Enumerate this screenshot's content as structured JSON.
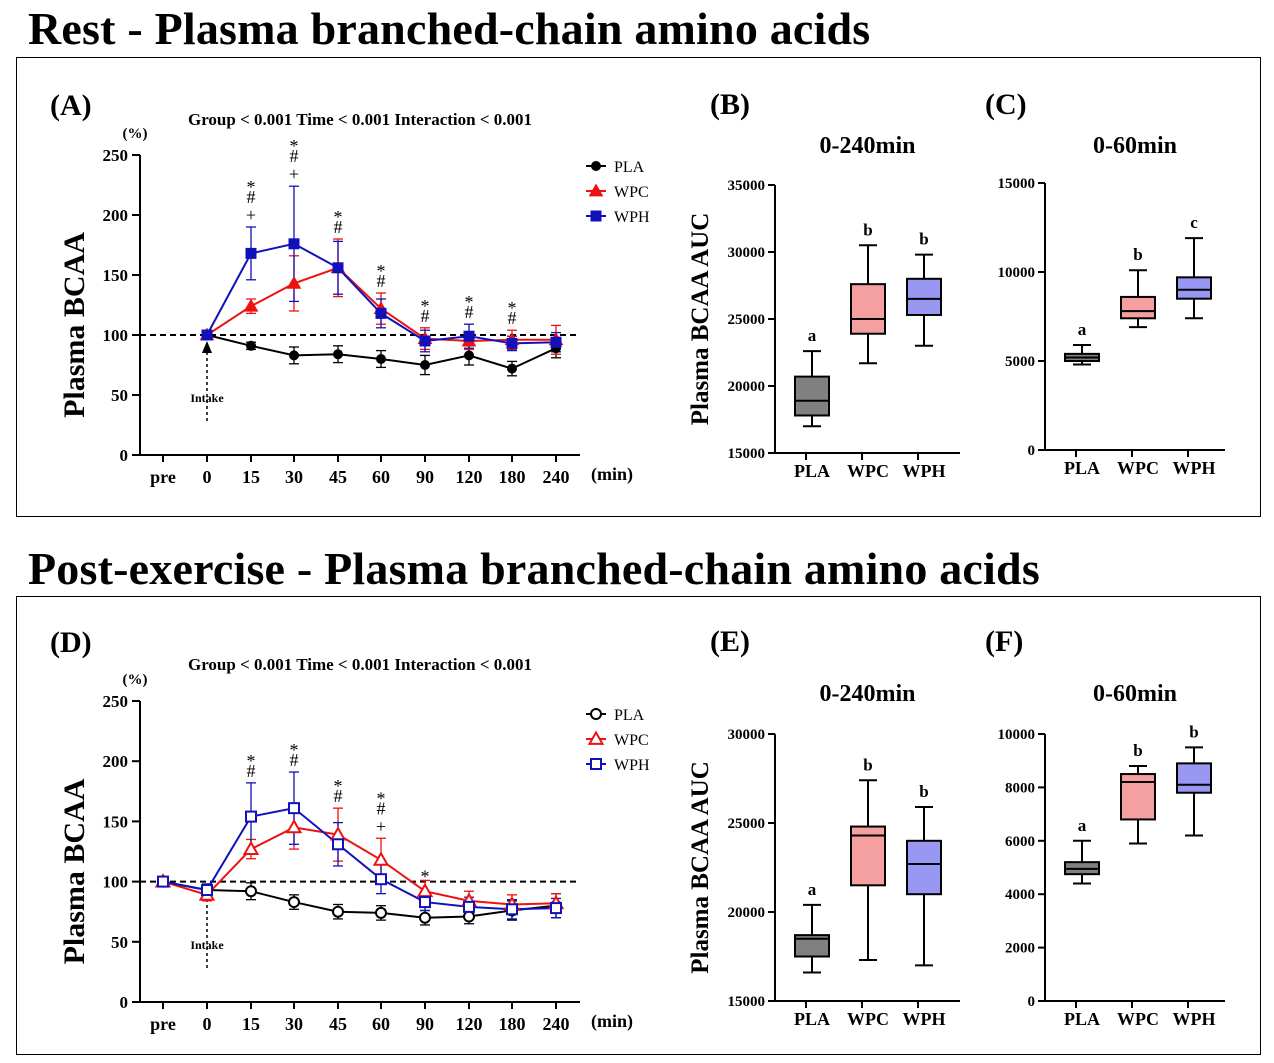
{
  "headings": {
    "rest": "Rest - Plasma branched-chain amino acids",
    "post": "Post-exercise - Plasma branched-chain amino acids"
  },
  "colors": {
    "PLA": "#000000",
    "WPC": "#ee1111",
    "WPH": "#1111bb",
    "box_PLA": "#808080",
    "box_WPC": "#f5a0a0",
    "box_WPH": "#9898f2"
  },
  "chart_data": [
    {
      "id": "A",
      "type": "line",
      "panel_label": "(A)",
      "stats": "Group < 0.001 Time < 0.001 Interaction < 0.001",
      "ylabel": "Plasma BCAA",
      "yunit": "(%)",
      "xunit": "(min)",
      "ylim": [
        0,
        250
      ],
      "yticks": [
        0,
        50,
        100,
        150,
        200,
        250
      ],
      "categories": [
        "pre",
        "0",
        "15",
        "30",
        "45",
        "60",
        "90",
        "120",
        "180",
        "240"
      ],
      "reference_line": 100,
      "annotation": "Intake",
      "annotation_at": "0",
      "legend_position": "top-right",
      "marker_fill": "filled",
      "series": [
        {
          "name": "PLA",
          "marker": "circle",
          "values": [
            null,
            100,
            91,
            83,
            84,
            80,
            75,
            83,
            72,
            89
          ],
          "errors": [
            null,
            0,
            3,
            7,
            7,
            7,
            8,
            8,
            6,
            8
          ]
        },
        {
          "name": "WPC",
          "marker": "triangle",
          "values": [
            null,
            100,
            124,
            143,
            156,
            122,
            97,
            95,
            96,
            96
          ],
          "errors": [
            null,
            0,
            6,
            23,
            24,
            13,
            9,
            7,
            8,
            12
          ]
        },
        {
          "name": "WPH",
          "marker": "square",
          "values": [
            null,
            100,
            168,
            176,
            156,
            118,
            95,
            99,
            93,
            94
          ],
          "errors": [
            null,
            0,
            22,
            48,
            22,
            12,
            9,
            10,
            6,
            8
          ]
        }
      ],
      "significance": [
        {
          "x": "15",
          "marks": [
            "*",
            "#",
            "+"
          ]
        },
        {
          "x": "30",
          "marks": [
            "*",
            "#",
            "+"
          ]
        },
        {
          "x": "45",
          "marks": [
            "*",
            "#"
          ]
        },
        {
          "x": "60",
          "marks": [
            "*",
            "#"
          ]
        },
        {
          "x": "90",
          "marks": [
            "*",
            "#"
          ]
        },
        {
          "x": "120",
          "marks": [
            "*",
            "#"
          ]
        },
        {
          "x": "180",
          "marks": [
            "*",
            "#"
          ]
        }
      ]
    },
    {
      "id": "B",
      "type": "box",
      "panel_label": "(B)",
      "title": "0-240min",
      "ylabel": "Plasma BCAA AUC",
      "ylim": [
        15000,
        35000
      ],
      "yticks": [
        15000,
        20000,
        25000,
        30000,
        35000
      ],
      "categories": [
        "PLA",
        "WPC",
        "WPH"
      ],
      "boxes": [
        {
          "min": 17000,
          "q1": 17800,
          "median": 18900,
          "q3": 20700,
          "max": 22600
        },
        {
          "min": 21700,
          "q1": 23900,
          "median": 25000,
          "q3": 27600,
          "max": 30500
        },
        {
          "min": 23000,
          "q1": 25300,
          "median": 26500,
          "q3": 28000,
          "max": 29800
        }
      ],
      "letters": [
        "a",
        "b",
        "b"
      ]
    },
    {
      "id": "C",
      "type": "box",
      "panel_label": "(C)",
      "title": "0-60min",
      "ylabel": "",
      "ylim": [
        0,
        15000
      ],
      "yticks": [
        0,
        5000,
        10000,
        15000
      ],
      "categories": [
        "PLA",
        "WPC",
        "WPH"
      ],
      "boxes": [
        {
          "min": 4800,
          "q1": 5000,
          "median": 5200,
          "q3": 5400,
          "max": 5900
        },
        {
          "min": 6900,
          "q1": 7400,
          "median": 7800,
          "q3": 8600,
          "max": 10100
        },
        {
          "min": 7400,
          "q1": 8500,
          "median": 9000,
          "q3": 9700,
          "max": 11900
        }
      ],
      "letters": [
        "a",
        "b",
        "c"
      ]
    },
    {
      "id": "D",
      "type": "line",
      "panel_label": "(D)",
      "stats": "Group < 0.001 Time < 0.001 Interaction < 0.001",
      "ylabel": "Plasma BCAA",
      "yunit": "(%)",
      "xunit": "(min)",
      "ylim": [
        0,
        250
      ],
      "yticks": [
        0,
        50,
        100,
        150,
        200,
        250
      ],
      "categories": [
        "pre",
        "0",
        "15",
        "30",
        "45",
        "60",
        "90",
        "120",
        "180",
        "240"
      ],
      "reference_line": 100,
      "annotation": "Intake",
      "annotation_at": "0",
      "legend_position": "top-right",
      "marker_fill": "open",
      "series": [
        {
          "name": "PLA",
          "marker": "circle",
          "values": [
            100,
            93,
            92,
            83,
            75,
            74,
            70,
            71,
            76,
            80
          ],
          "errors": [
            0,
            5,
            7,
            6,
            6,
            6,
            6,
            6,
            8,
            10
          ]
        },
        {
          "name": "WPC",
          "marker": "triangle",
          "values": [
            100,
            89,
            127,
            145,
            139,
            118,
            92,
            84,
            81,
            82
          ],
          "errors": [
            0,
            5,
            8,
            18,
            22,
            18,
            9,
            8,
            8,
            8
          ]
        },
        {
          "name": "WPH",
          "marker": "square",
          "values": [
            100,
            93,
            154,
            161,
            131,
            102,
            83,
            79,
            77,
            78
          ],
          "errors": [
            0,
            5,
            28,
            30,
            18,
            12,
            7,
            8,
            8,
            8
          ]
        }
      ],
      "significance": [
        {
          "x": "15",
          "marks": [
            "*",
            "#"
          ]
        },
        {
          "x": "30",
          "marks": [
            "*",
            "#"
          ]
        },
        {
          "x": "45",
          "marks": [
            "*",
            "#"
          ]
        },
        {
          "x": "60",
          "marks": [
            "*",
            "#",
            "+"
          ]
        },
        {
          "x": "90",
          "marks": [
            "*"
          ]
        }
      ]
    },
    {
      "id": "E",
      "type": "box",
      "panel_label": "(E)",
      "title": "0-240min",
      "ylabel": "Plasma BCAA AUC",
      "ylim": [
        15000,
        30000
      ],
      "yticks": [
        15000,
        20000,
        25000,
        30000
      ],
      "categories": [
        "PLA",
        "WPC",
        "WPH"
      ],
      "boxes": [
        {
          "min": 16600,
          "q1": 17500,
          "median": 18500,
          "q3": 18700,
          "max": 20400
        },
        {
          "min": 17300,
          "q1": 21500,
          "median": 24300,
          "q3": 24800,
          "max": 27400
        },
        {
          "min": 17000,
          "q1": 21000,
          "median": 22700,
          "q3": 24000,
          "max": 25900
        }
      ],
      "letters": [
        "a",
        "b",
        "b"
      ]
    },
    {
      "id": "F",
      "type": "box",
      "panel_label": "(F)",
      "title": "0-60min",
      "ylabel": "",
      "ylim": [
        0,
        10000
      ],
      "yticks": [
        0,
        2000,
        4000,
        6000,
        8000,
        10000
      ],
      "categories": [
        "PLA",
        "WPC",
        "WPH"
      ],
      "boxes": [
        {
          "min": 4400,
          "q1": 4750,
          "median": 4950,
          "q3": 5200,
          "max": 6000
        },
        {
          "min": 5900,
          "q1": 6800,
          "median": 8200,
          "q3": 8500,
          "max": 8800
        },
        {
          "min": 6200,
          "q1": 7800,
          "median": 8100,
          "q3": 8900,
          "max": 9500
        }
      ],
      "letters": [
        "a",
        "b",
        "b"
      ]
    }
  ]
}
